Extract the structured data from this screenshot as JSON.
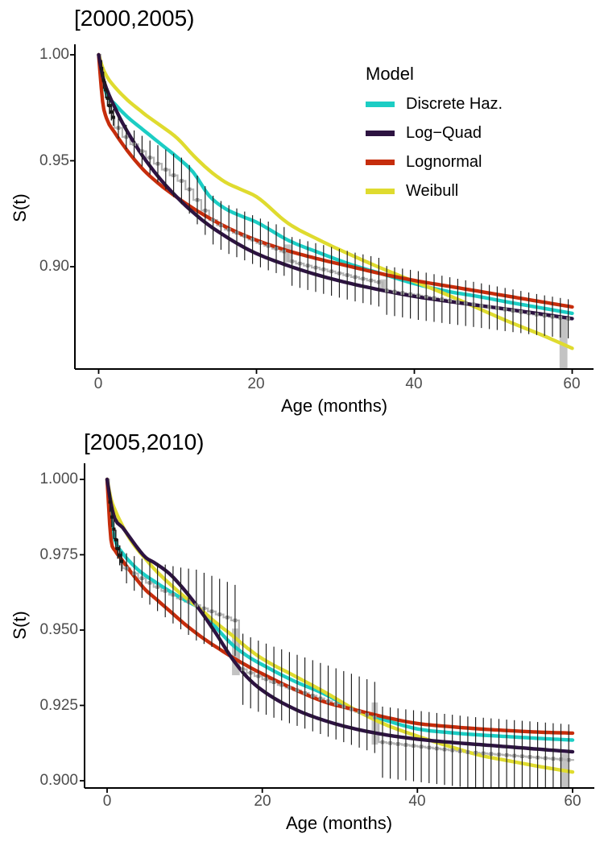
{
  "figure": {
    "legend": {
      "title": "Model",
      "items": [
        {
          "label": "Discrete Haz.",
          "color": "#1CCDC4"
        },
        {
          "label": "Log−Quad",
          "color": "#2D1341"
        },
        {
          "label": "Lognormal",
          "color": "#C62D0C"
        },
        {
          "label": "Weibull",
          "color": "#DFDB2F"
        }
      ]
    },
    "km_color": "#9c9c9c",
    "km_block_color": "#c3c3c3",
    "axis_text_color": "#4d4d4d"
  },
  "chart_data": [
    {
      "type": "line",
      "title": "[2000,2005)",
      "xlabel": "Age (months)",
      "ylabel": "S(t)",
      "x_ticks": [
        0,
        20,
        40,
        60
      ],
      "x_tick_labels": [
        "0",
        "20",
        "40",
        "60"
      ],
      "y_ticks": [
        1.0,
        0.95,
        0.9
      ],
      "y_tick_labels": [
        "1.00",
        "0.95",
        "0.90"
      ],
      "xlim": [
        -3,
        62.5
      ],
      "ylim": [
        0.852,
        1.005
      ],
      "grid": false,
      "legend_position": "inside-top-right",
      "x": [
        0,
        0.5,
        1,
        2,
        3,
        4,
        5,
        6,
        8,
        10,
        12,
        14,
        16,
        18,
        20,
        24,
        28,
        32,
        36,
        40,
        44,
        48,
        52,
        56,
        60
      ],
      "series": [
        {
          "name": "Discrete Haz.",
          "color": "#1CCDC4",
          "values": [
            1.0,
            0.9885,
            0.9815,
            0.977,
            0.973,
            0.9695,
            0.9665,
            0.9635,
            0.9575,
            0.9515,
            0.9445,
            0.9335,
            0.9275,
            0.924,
            0.921,
            0.9125,
            0.9065,
            0.901,
            0.8965,
            0.892,
            0.8885,
            0.886,
            0.8832,
            0.8806,
            0.878
          ]
        },
        {
          "name": "Log−Quad",
          "color": "#2D1341",
          "values": [
            1.0,
            0.99,
            0.984,
            0.9755,
            0.968,
            0.9615,
            0.9555,
            0.95,
            0.9405,
            0.9325,
            0.9255,
            0.9195,
            0.9145,
            0.91,
            0.9062,
            0.9005,
            0.8958,
            0.892,
            0.8888,
            0.886,
            0.8838,
            0.8818,
            0.8798,
            0.8777,
            0.8755
          ]
        },
        {
          "name": "Lognormal",
          "color": "#C62D0C",
          "values": [
            1.0,
            0.978,
            0.97,
            0.9635,
            0.958,
            0.953,
            0.9485,
            0.9445,
            0.938,
            0.9325,
            0.9275,
            0.923,
            0.919,
            0.9155,
            0.9125,
            0.9075,
            0.9035,
            0.9,
            0.8965,
            0.8935,
            0.891,
            0.8885,
            0.886,
            0.8835,
            0.881
          ]
        },
        {
          "name": "Weibull",
          "color": "#DFDB2F",
          "values": [
            1.0,
            0.994,
            0.99,
            0.985,
            0.981,
            0.9775,
            0.9745,
            0.9715,
            0.9662,
            0.9605,
            0.9525,
            0.9455,
            0.94,
            0.9365,
            0.933,
            0.9205,
            0.9125,
            0.9055,
            0.899,
            0.893,
            0.887,
            0.8805,
            0.874,
            0.868,
            0.8615
          ]
        }
      ],
      "km": {
        "name": "Kaplan-Meier step estimate with monthly CIs",
        "x": [
          0,
          0.25,
          0.5,
          0.75,
          1,
          1.25,
          1.5,
          1.75,
          2,
          3,
          4,
          5,
          6,
          7,
          8,
          9,
          10,
          11,
          12,
          13,
          14,
          15,
          16,
          17,
          18,
          19,
          20,
          21,
          22,
          23,
          24,
          25,
          26,
          27,
          28,
          29,
          30,
          31,
          32,
          33,
          34,
          35,
          36,
          37,
          38,
          39,
          40,
          41,
          42,
          43,
          44,
          45,
          46,
          47,
          48,
          49,
          50,
          51,
          52,
          53,
          54,
          55,
          56,
          57,
          58,
          59
        ],
        "y": [
          1.0,
          0.9935,
          0.988,
          0.9835,
          0.9795,
          0.976,
          0.973,
          0.9705,
          0.9655,
          0.9612,
          0.9578,
          0.9545,
          0.9515,
          0.9486,
          0.9458,
          0.9431,
          0.9405,
          0.9365,
          0.9315,
          0.9265,
          0.922,
          0.9195,
          0.9175,
          0.916,
          0.9145,
          0.9128,
          0.9112,
          0.9098,
          0.9085,
          0.9072,
          0.9025,
          0.9015,
          0.9005,
          0.8996,
          0.8987,
          0.8978,
          0.8969,
          0.896,
          0.8951,
          0.8943,
          0.8935,
          0.8927,
          0.8888,
          0.8882,
          0.8876,
          0.887,
          0.8864,
          0.8858,
          0.8852,
          0.8846,
          0.884,
          0.8834,
          0.8828,
          0.8822,
          0.8816,
          0.881,
          0.8804,
          0.8798,
          0.8792,
          0.8786,
          0.878,
          0.8774,
          0.8769,
          0.8764,
          0.8759,
          0.8754
        ],
        "ci_blocks": [
          {
            "x0": 23.55,
            "x1": 24.45,
            "v0": 0.9105,
            "v1": 0.902
          },
          {
            "x0": 35.6,
            "x1": 36.4,
            "v0": 0.894,
            "v1": 0.8882
          },
          {
            "x0": 58.4,
            "x1": 59.4,
            "v0": 0.8768,
            "v1": 0.852
          }
        ],
        "ci_halfwidth_approx": {
          "early": 0.004,
          "late": 0.0115
        }
      }
    },
    {
      "type": "line",
      "title": "[2005,2010)",
      "xlabel": "Age (months)",
      "ylabel": "S(t)",
      "x_ticks": [
        0,
        20,
        40,
        60
      ],
      "x_tick_labels": [
        "0",
        "20",
        "40",
        "60"
      ],
      "y_ticks": [
        1.0,
        0.975,
        0.95,
        0.925,
        0.9
      ],
      "y_tick_labels": [
        "1.000",
        "0.975",
        "0.950",
        "0.925",
        "0.900"
      ],
      "xlim": [
        -3,
        62.5
      ],
      "ylim": [
        0.8976,
        1.005
      ],
      "grid": false,
      "legend_position": "none",
      "x": [
        0,
        0.5,
        1,
        2,
        3,
        4,
        5,
        6,
        8,
        10,
        12,
        14,
        16,
        18,
        20,
        24,
        28,
        32,
        36,
        40,
        44,
        48,
        52,
        56,
        60
      ],
      "series": [
        {
          "name": "Discrete Haz.",
          "color": "#1CCDC4",
          "values": [
            1.0,
            0.9865,
            0.98,
            0.9755,
            0.9725,
            0.97,
            0.968,
            0.9663,
            0.963,
            0.96,
            0.957,
            0.951,
            0.9455,
            0.9415,
            0.9385,
            0.9332,
            0.9288,
            0.9235,
            0.92,
            0.9172,
            0.916,
            0.9152,
            0.9146,
            0.914,
            0.9135
          ]
        },
        {
          "name": "Log−Quad",
          "color": "#2D1341",
          "values": [
            1.0,
            0.992,
            0.987,
            0.984,
            0.9805,
            0.977,
            0.974,
            0.9725,
            0.9688,
            0.9632,
            0.9565,
            0.949,
            0.941,
            0.9345,
            0.93,
            0.924,
            0.92,
            0.9172,
            0.9152,
            0.9138,
            0.9128,
            0.912,
            0.9112,
            0.9104,
            0.9096
          ]
        },
        {
          "name": "Lognormal",
          "color": "#C62D0C",
          "values": [
            1.0,
            0.98,
            0.9765,
            0.973,
            0.9695,
            0.9662,
            0.9632,
            0.961,
            0.9565,
            0.952,
            0.948,
            0.9445,
            0.9412,
            0.9382,
            0.9355,
            0.9305,
            0.9262,
            0.9235,
            0.921,
            0.919,
            0.918,
            0.9172,
            0.9166,
            0.9161,
            0.9158
          ]
        },
        {
          "name": "Weibull",
          "color": "#DFDB2F",
          "values": [
            1.0,
            0.9935,
            0.99,
            0.9845,
            0.98,
            0.9765,
            0.9735,
            0.9705,
            0.9655,
            0.961,
            0.957,
            0.9525,
            0.9485,
            0.9442,
            0.9405,
            0.935,
            0.9295,
            0.9235,
            0.9185,
            0.9148,
            0.9115,
            0.9085,
            0.9065,
            0.9046,
            0.9029
          ]
        }
      ],
      "km": {
        "name": "Kaplan-Meier step estimate with monthly CIs",
        "x": [
          0,
          0.25,
          0.5,
          0.75,
          1,
          1.25,
          1.5,
          1.75,
          2,
          3,
          4,
          5,
          6,
          7,
          8,
          9,
          10,
          11,
          12,
          13,
          14,
          15,
          16,
          17,
          18,
          19,
          20,
          21,
          22,
          23,
          24,
          25,
          26,
          27,
          28,
          29,
          30,
          31,
          32,
          33,
          34,
          35,
          36,
          37,
          38,
          39,
          40,
          41,
          42,
          43,
          44,
          45,
          46,
          47,
          48,
          49,
          50,
          51,
          52,
          53,
          54,
          55,
          56,
          57,
          58,
          59
        ],
        "y": [
          1.0,
          0.9925,
          0.9875,
          0.9835,
          0.98,
          0.977,
          0.9748,
          0.9728,
          0.9705,
          0.9688,
          0.9672,
          0.9657,
          0.9643,
          0.963,
          0.9617,
          0.9605,
          0.9594,
          0.9583,
          0.9572,
          0.9562,
          0.9552,
          0.9542,
          0.9532,
          0.937,
          0.9358,
          0.9347,
          0.9337,
          0.9327,
          0.9318,
          0.9309,
          0.93,
          0.9291,
          0.9282,
          0.9273,
          0.9264,
          0.9255,
          0.9246,
          0.9237,
          0.9228,
          0.9219,
          0.921,
          0.9128,
          0.9125,
          0.9122,
          0.9119,
          0.9116,
          0.9113,
          0.911,
          0.9107,
          0.9104,
          0.9101,
          0.9098,
          0.9095,
          0.9093,
          0.9091,
          0.9089,
          0.9087,
          0.9085,
          0.9083,
          0.9081,
          0.9079,
          0.9077,
          0.9075,
          0.9073,
          0.9071,
          0.9069
        ],
        "ci_blocks": [
          {
            "x0": 16.1,
            "x1": 17.1,
            "v0": 0.9505,
            "v1": 0.935
          },
          {
            "x0": 34.1,
            "x1": 34.9,
            "v0": 0.926,
            "v1": 0.912
          },
          {
            "x0": 58.4,
            "x1": 59.4,
            "v0": 0.909,
            "v1": 0.8977
          }
        ],
        "ci_halfwidth_approx": {
          "early": 0.0033,
          "late": 0.0118
        }
      }
    }
  ]
}
